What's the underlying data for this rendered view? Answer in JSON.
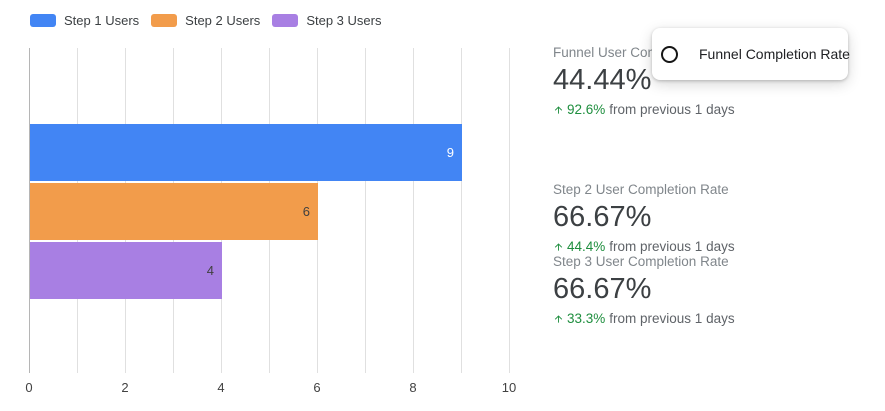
{
  "chart_data": {
    "type": "bar",
    "orientation": "horizontal",
    "categories": [
      "Step 1 Users",
      "Step 2 Users",
      "Step 3 Users"
    ],
    "series": [
      {
        "name": "Step 1 Users",
        "value": 9,
        "color": "#4285F4",
        "label_color": "#ffffff"
      },
      {
        "name": "Step 2 Users",
        "value": 6,
        "color": "#F29C4B",
        "label_color": "#404040"
      },
      {
        "name": "Step 3 Users",
        "value": 4,
        "color": "#A87FE3",
        "label_color": "#404040"
      }
    ],
    "xlim": [
      0,
      10
    ],
    "x_ticks": [
      0,
      2,
      4,
      6,
      8,
      10
    ],
    "x_minor_tick_interval": 1,
    "grid": true,
    "legend_position": "top-left"
  },
  "stats": [
    {
      "label": "Funnel User Completion Rate",
      "value": "44.44%",
      "delta": "92.6%",
      "delta_suffix": "from previous 1 days",
      "trend": "up"
    },
    {
      "label": "Step 2 User Completion Rate",
      "value": "66.67%",
      "delta": "44.4%",
      "delta_suffix": "from previous 1 days",
      "trend": "up"
    },
    {
      "label": "Step 3 User Completion Rate",
      "value": "66.67%",
      "delta": "33.3%",
      "delta_suffix": "from previous 1 days",
      "trend": "up"
    }
  ],
  "tooltip": {
    "label": "Funnel Completion Rate",
    "icon": "circle-outline-icon"
  },
  "colors": {
    "background": "#ffffff",
    "grid": "#e0e0e0",
    "axis_zero_line": "#b5b5b5",
    "axis_label": "#424242",
    "legend_label": "#3c4043",
    "stat_label": "#80868b",
    "stat_value": "#3c4043",
    "delta_up_green": "#1e8e3e",
    "delta_text": "#5f6368",
    "tooltip_text": "#202124"
  }
}
